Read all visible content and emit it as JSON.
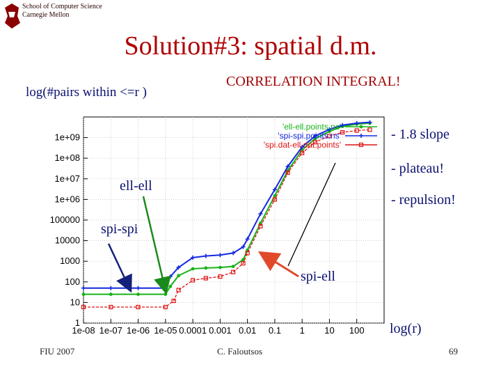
{
  "header": {
    "school": "School of Computer Science",
    "university": "Carnegie Mellon"
  },
  "slide": {
    "title": "Solution#3: spatial d.m.",
    "y_label": "log(#pairs within <=r )",
    "subtitle": "CORRELATION INTEGRAL!",
    "x_label": "log(r)",
    "notes": [
      "- 1.8 slope",
      "- plateau!",
      "- repulsion!"
    ],
    "annotations": [
      "ell-ell",
      "spi-spi",
      "spi-ell"
    ]
  },
  "footer": {
    "left": "FIU 2007",
    "center": "C. Faloutsos",
    "page": "69"
  },
  "colors": {
    "title": "#b00000",
    "text": "#0a1070",
    "ell_ell": "#17b317",
    "spi_spi": "#1528e0",
    "spi_ell": "#e01010"
  },
  "chart_data": {
    "type": "line",
    "x_scale": "log",
    "y_scale": "log",
    "xlim": [
      1e-08,
      1000
    ],
    "ylim": [
      1,
      10000000000.0
    ],
    "x_ticks": [
      "1e-08",
      "1e-07",
      "1e-06",
      "1e-05",
      "0.0001",
      "0.001",
      "0.01",
      "0.1",
      "1",
      "10",
      "100"
    ],
    "y_ticks": [
      "1",
      "10",
      "100",
      "1000",
      "10000",
      "100000",
      "1e+06",
      "1e+07",
      "1e+08",
      "1e+09"
    ],
    "legend_position": "top-right",
    "series": [
      {
        "name": "'ell-ell.points.ns'",
        "color": "#17b317",
        "marker": "dot",
        "x": [
          1e-08,
          1e-07,
          1e-06,
          1e-05,
          1.5e-05,
          3e-05,
          0.0001,
          0.0003,
          0.001,
          0.003,
          0.007,
          0.01,
          0.03,
          0.1,
          0.3,
          1,
          3,
          10,
          30,
          100,
          300
        ],
        "y": [
          25,
          25,
          25,
          25,
          60,
          200,
          430,
          470,
          500,
          560,
          1200,
          3500,
          70000,
          1500000,
          25000000,
          250000000,
          900000000,
          2000000000,
          3500000000,
          4500000000,
          5000000000
        ]
      },
      {
        "name": "'spi-spi.points.ns'",
        "color": "#1528e0",
        "marker": "plus",
        "x": [
          1e-08,
          1e-07,
          1e-06,
          1e-05,
          1.5e-05,
          3e-05,
          0.0001,
          0.0003,
          0.001,
          0.003,
          0.007,
          0.01,
          0.03,
          0.1,
          0.3,
          1,
          3,
          10,
          30,
          100,
          300
        ],
        "y": [
          50,
          50,
          50,
          50,
          180,
          500,
          1500,
          1800,
          2000,
          2500,
          5000,
          12000,
          200000,
          3000000,
          40000000,
          350000000,
          1200000000,
          2500000000,
          4000000000,
          5000000000,
          5500000000
        ]
      },
      {
        "name": "'spi.dat-ell.dat.points'",
        "color": "#e01010",
        "marker": "square",
        "x": [
          1e-08,
          1e-07,
          1e-06,
          1e-05,
          2e-05,
          3e-05,
          0.0001,
          0.0003,
          0.001,
          0.003,
          0.007,
          0.01,
          0.03,
          0.1,
          0.3,
          1,
          3,
          10,
          30,
          100,
          300
        ],
        "y": [
          6,
          6,
          6,
          6,
          12,
          40,
          120,
          150,
          180,
          300,
          800,
          2500,
          50000,
          1000000,
          20000000,
          180000000,
          600000000,
          1200000000,
          1800000000,
          2200000000,
          2400000000
        ]
      }
    ]
  }
}
